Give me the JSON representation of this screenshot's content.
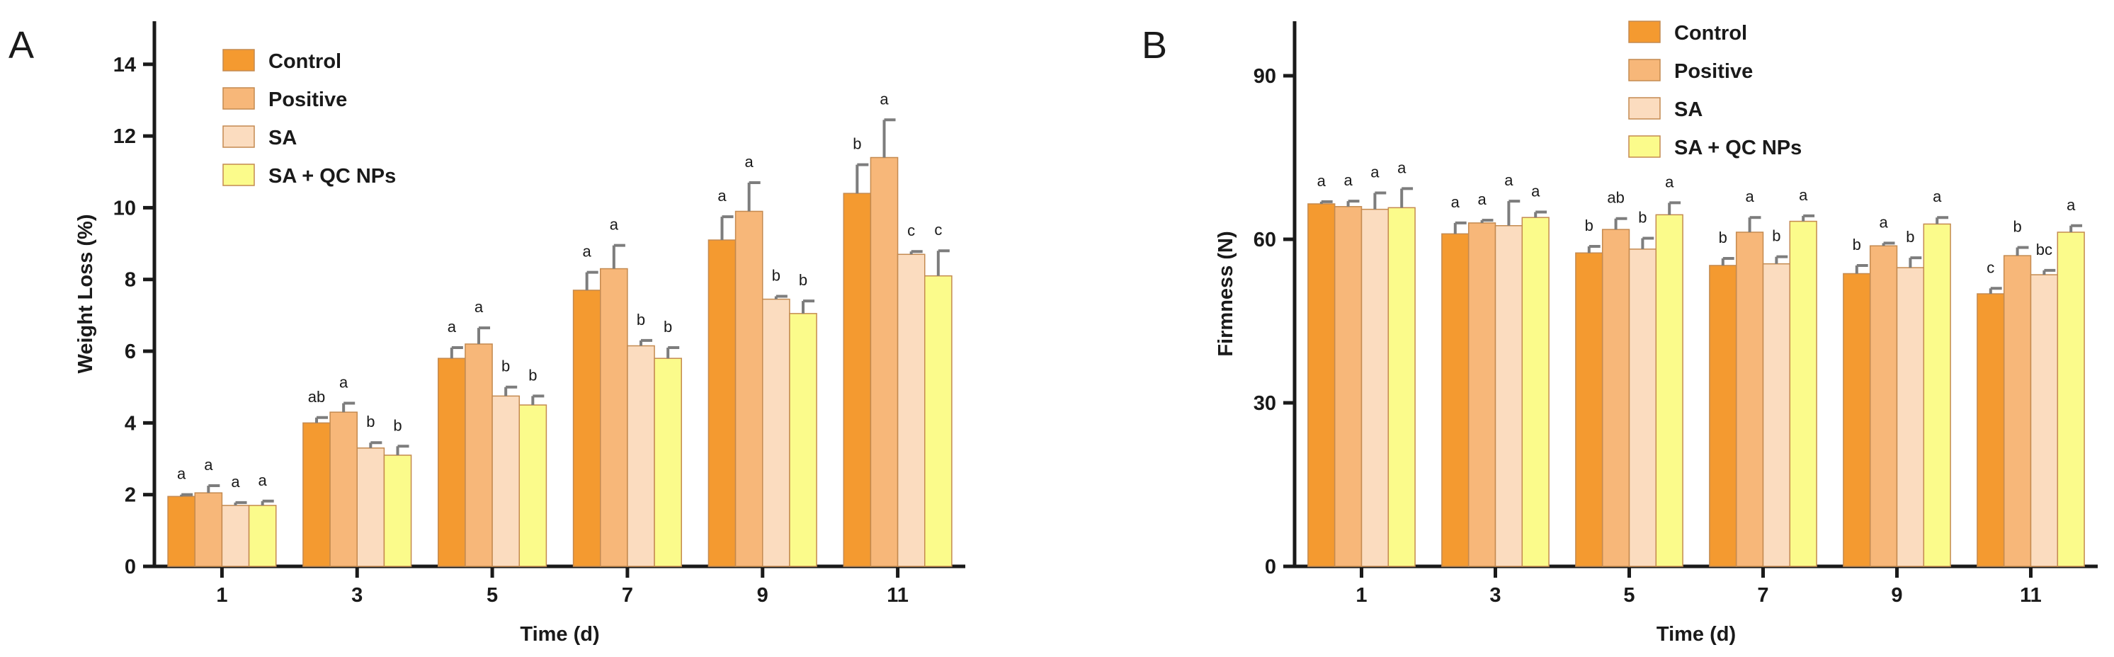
{
  "colors": {
    "series": [
      "#f49a30",
      "#f7b779",
      "#fbdcbf",
      "#fbfb8b"
    ],
    "bar_edge": "#c48a50",
    "error": "#7d7d7d"
  },
  "chart_data": [
    {
      "panel_label": "A",
      "type": "bar",
      "title": "",
      "xlabel": "Time (d)",
      "ylabel": "Weight Loss (%)",
      "ylim": [
        0,
        15.2
      ],
      "yticks": [
        0,
        2,
        4,
        6,
        8,
        10,
        12,
        14
      ],
      "ytick_labels": [
        "0",
        "2",
        "4",
        "6",
        "8",
        "10",
        "12",
        "14"
      ],
      "categories": [
        "1",
        "3",
        "5",
        "7",
        "9",
        "11"
      ],
      "legend_position": "top-left",
      "series": [
        {
          "name": "Control",
          "values": [
            1.95,
            4.0,
            5.8,
            7.7,
            9.1,
            10.4
          ],
          "errors": [
            0.05,
            0.15,
            0.3,
            0.5,
            0.65,
            0.8
          ],
          "letters": [
            "a",
            "ab",
            "a",
            "a",
            "a",
            "b"
          ]
        },
        {
          "name": "Positive",
          "values": [
            2.05,
            4.3,
            6.2,
            8.3,
            9.9,
            11.4
          ],
          "errors": [
            0.2,
            0.25,
            0.45,
            0.65,
            0.8,
            1.05
          ],
          "letters": [
            "a",
            "a",
            "a",
            "a",
            "a",
            "a"
          ]
        },
        {
          "name": "SA",
          "values": [
            1.7,
            3.3,
            4.75,
            6.15,
            7.45,
            8.7
          ],
          "errors": [
            0.08,
            0.15,
            0.25,
            0.15,
            0.08,
            0.08
          ],
          "letters": [
            "a",
            "b",
            "b",
            "b",
            "b",
            "c"
          ]
        },
        {
          "name": "SA + QC NPs",
          "values": [
            1.7,
            3.1,
            4.5,
            5.8,
            7.05,
            8.1
          ],
          "errors": [
            0.12,
            0.25,
            0.25,
            0.3,
            0.35,
            0.7
          ],
          "letters": [
            "a",
            "b",
            "b",
            "b",
            "b",
            "c"
          ]
        }
      ]
    },
    {
      "panel_label": "B",
      "type": "bar",
      "title": "",
      "xlabel": "Time (d)",
      "ylabel": "Firmness (N)",
      "ylim": [
        0,
        100
      ],
      "yticks": [
        0,
        30,
        60,
        90
      ],
      "ytick_labels": [
        "0",
        "30",
        "60",
        "90"
      ],
      "categories": [
        "1",
        "3",
        "5",
        "7",
        "9",
        "11"
      ],
      "legend_position": "top-right",
      "series": [
        {
          "name": "Control",
          "values": [
            66.5,
            61.0,
            57.5,
            55.2,
            53.7,
            50.0
          ],
          "errors": [
            0.4,
            2.0,
            1.2,
            1.3,
            1.5,
            1.0
          ],
          "letters": [
            "a",
            "a",
            "b",
            "b",
            "b",
            "c"
          ]
        },
        {
          "name": "Positive",
          "values": [
            66.0,
            63.0,
            61.8,
            61.3,
            58.8,
            57.0
          ],
          "errors": [
            1.0,
            0.5,
            2.0,
            2.7,
            0.5,
            1.5
          ],
          "letters": [
            "a",
            "a",
            "ab",
            "a",
            "a",
            "b"
          ]
        },
        {
          "name": "SA",
          "values": [
            65.5,
            62.5,
            58.2,
            55.5,
            54.8,
            53.5
          ],
          "errors": [
            3.0,
            4.5,
            2.0,
            1.3,
            1.8,
            0.8
          ],
          "letters": [
            "a",
            "a",
            "b",
            "b",
            "b",
            "bc"
          ]
        },
        {
          "name": "SA + QC NPs",
          "values": [
            65.8,
            64.0,
            64.5,
            63.3,
            62.8,
            61.3
          ],
          "errors": [
            3.5,
            1.0,
            2.2,
            1.0,
            1.2,
            1.2
          ],
          "letters": [
            "a",
            "a",
            "a",
            "a",
            "a",
            "a"
          ]
        }
      ]
    }
  ]
}
